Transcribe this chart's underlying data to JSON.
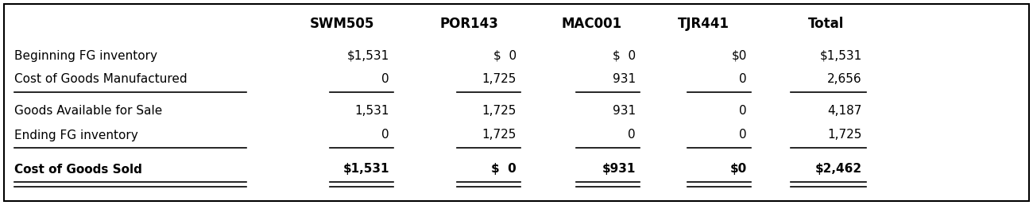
{
  "columns": [
    "SWM505",
    "POR143",
    "MAC001",
    "TJR441",
    "Total"
  ],
  "rows": [
    {
      "label": "Beginning FG inventory",
      "values": [
        "$1,531",
        "$  0",
        "$  0",
        "$0",
        "$1,531"
      ],
      "bold": false,
      "underline_below": false,
      "double_underline_below": false
    },
    {
      "label": "Cost of Goods Manufactured",
      "values": [
        "0",
        "1,725",
        "931",
        "0",
        "2,656"
      ],
      "bold": false,
      "underline_below": true,
      "double_underline_below": false
    },
    {
      "label": "Goods Available for Sale",
      "values": [
        "1,531",
        "1,725",
        "931",
        "0",
        "4,187"
      ],
      "bold": false,
      "underline_below": false,
      "double_underline_below": false
    },
    {
      "label": "Ending FG inventory",
      "values": [
        "0",
        "1,725",
        "0",
        "0",
        "1,725"
      ],
      "bold": false,
      "underline_below": true,
      "double_underline_below": false
    },
    {
      "label": "Cost of Goods Sold",
      "values": [
        "$1,531",
        "$  0",
        "$931",
        "$0",
        "$2,462"
      ],
      "bold": true,
      "underline_below": false,
      "double_underline_below": true
    }
  ],
  "bg_color": "#ffffff",
  "border_color": "#000000",
  "text_color": "#000000",
  "fontsize": 11.0,
  "header_fontsize": 12.0
}
